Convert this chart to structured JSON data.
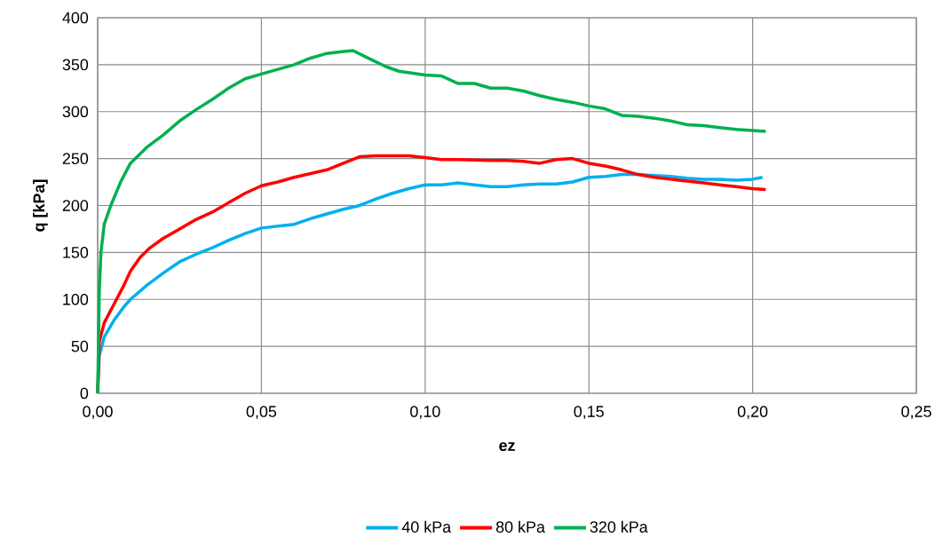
{
  "chart_data": {
    "type": "line",
    "xlabel": "ez",
    "ylabel": "q  [kPa]",
    "xlim": [
      0,
      0.25
    ],
    "ylim": [
      0,
      400
    ],
    "xticks": [
      {
        "value": 0,
        "label": "0,00"
      },
      {
        "value": 0.05,
        "label": "0,05"
      },
      {
        "value": 0.1,
        "label": "0,10"
      },
      {
        "value": 0.15,
        "label": "0,15"
      },
      {
        "value": 0.2,
        "label": "0,20"
      },
      {
        "value": 0.25,
        "label": "0,25"
      }
    ],
    "yticks": [
      0,
      50,
      100,
      150,
      200,
      250,
      300,
      350,
      400
    ],
    "grid": true,
    "legend": "bottom",
    "marker": "none",
    "line_style": "solid",
    "series": [
      {
        "name": "40 kPa",
        "color": "#00b0f0",
        "x": [
          0,
          0.0005,
          0.002,
          0.005,
          0.008,
          0.01,
          0.015,
          0.02,
          0.025,
          0.03,
          0.035,
          0.04,
          0.045,
          0.05,
          0.055,
          0.06,
          0.065,
          0.07,
          0.075,
          0.08,
          0.085,
          0.09,
          0.095,
          0.1,
          0.105,
          0.11,
          0.115,
          0.12,
          0.125,
          0.13,
          0.135,
          0.14,
          0.145,
          0.15,
          0.155,
          0.16,
          0.165,
          0.17,
          0.175,
          0.18,
          0.185,
          0.19,
          0.195,
          0.2,
          0.203
        ],
        "values": [
          0,
          40,
          60,
          78,
          92,
          100,
          115,
          128,
          140,
          148,
          155,
          163,
          170,
          176,
          178,
          180,
          186,
          191,
          196,
          200,
          207,
          213,
          218,
          222,
          222,
          224,
          222,
          220,
          220,
          222,
          223,
          223,
          225,
          230,
          231,
          233,
          233,
          232,
          231,
          229,
          228,
          228,
          227,
          228,
          230
        ]
      },
      {
        "name": "80 kPa",
        "color": "#ff0000",
        "x": [
          0,
          0.0005,
          0.002,
          0.005,
          0.008,
          0.01,
          0.013,
          0.016,
          0.02,
          0.025,
          0.03,
          0.035,
          0.04,
          0.045,
          0.05,
          0.055,
          0.06,
          0.065,
          0.07,
          0.075,
          0.08,
          0.085,
          0.09,
          0.095,
          0.1,
          0.105,
          0.11,
          0.12,
          0.125,
          0.13,
          0.135,
          0.14,
          0.145,
          0.15,
          0.155,
          0.16,
          0.165,
          0.17,
          0.175,
          0.18,
          0.185,
          0.19,
          0.195,
          0.2,
          0.204
        ],
        "values": [
          0,
          55,
          75,
          95,
          115,
          130,
          145,
          155,
          165,
          175,
          185,
          193,
          203,
          213,
          221,
          225,
          230,
          234,
          238,
          245,
          252,
          253,
          253,
          253,
          251,
          249,
          249,
          248,
          248,
          247,
          245,
          249,
          250,
          245,
          242,
          238,
          233,
          230,
          228,
          226,
          224,
          222,
          220,
          218,
          217
        ]
      },
      {
        "name": "320 kPa",
        "color": "#00b050",
        "x": [
          0,
          0.0005,
          0.001,
          0.002,
          0.004,
          0.007,
          0.01,
          0.015,
          0.02,
          0.025,
          0.03,
          0.035,
          0.04,
          0.045,
          0.05,
          0.055,
          0.06,
          0.065,
          0.07,
          0.075,
          0.078,
          0.082,
          0.088,
          0.092,
          0.1,
          0.105,
          0.11,
          0.115,
          0.12,
          0.125,
          0.13,
          0.135,
          0.14,
          0.145,
          0.15,
          0.155,
          0.16,
          0.165,
          0.17,
          0.175,
          0.18,
          0.185,
          0.19,
          0.195,
          0.2,
          0.204
        ],
        "values": [
          0,
          110,
          150,
          180,
          200,
          225,
          245,
          262,
          275,
          290,
          302,
          313,
          325,
          335,
          340,
          345,
          350,
          357,
          362,
          364,
          365,
          358,
          348,
          343,
          339,
          338,
          330,
          330,
          325,
          325,
          322,
          317,
          313,
          310,
          306,
          303,
          296,
          295,
          293,
          290,
          286,
          285,
          283,
          281,
          280,
          279
        ]
      }
    ]
  }
}
